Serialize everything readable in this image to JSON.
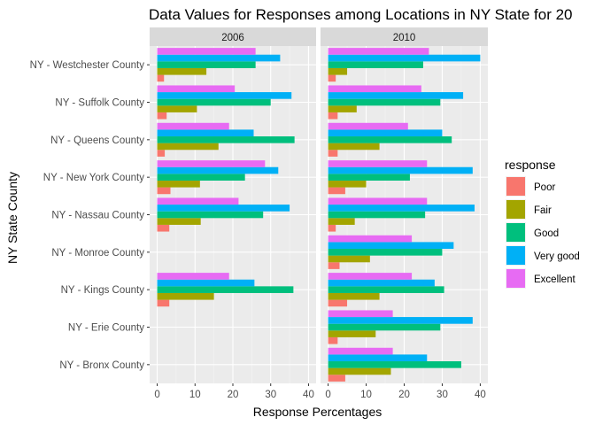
{
  "chart_data": {
    "type": "bar",
    "orientation": "horizontal",
    "title": "Data Values for Responses among Locations in NY State for 20",
    "xlabel": "Response Percentages",
    "ylabel": "NY State County",
    "xlim": [
      -2,
      42
    ],
    "x_ticks": [
      0,
      10,
      20,
      30,
      40
    ],
    "grid": true,
    "legend_position": "right",
    "legend_title": "response",
    "categories": [
      "NY - Westchester County",
      "NY - Suffolk County",
      "NY - Queens County",
      "NY - New York County",
      "NY - Nassau County",
      "NY - Monroe County",
      "NY - Kings County",
      "NY - Erie County",
      "NY - Bronx County"
    ],
    "series_meta": [
      {
        "name": "Poor",
        "color": "#F8766D"
      },
      {
        "name": "Fair",
        "color": "#A3A500"
      },
      {
        "name": "Good",
        "color": "#00BF7D"
      },
      {
        "name": "Very good",
        "color": "#00B0F6"
      },
      {
        "name": "Excellent",
        "color": "#E76BF3"
      }
    ],
    "panels": [
      {
        "label": "2006",
        "series": [
          {
            "name": "Poor",
            "values": [
              1.8,
              2.5,
              2.0,
              3.5,
              3.2,
              null,
              3.2,
              null,
              null
            ]
          },
          {
            "name": "Fair",
            "values": [
              13.0,
              10.5,
              16.2,
              11.3,
              11.5,
              null,
              15.0,
              null,
              null
            ]
          },
          {
            "name": "Good",
            "values": [
              26.0,
              30.0,
              36.3,
              23.2,
              28.0,
              null,
              36.0,
              null,
              null
            ]
          },
          {
            "name": "Very good",
            "values": [
              32.5,
              35.5,
              25.5,
              32.0,
              35.0,
              null,
              25.7,
              null,
              null
            ]
          },
          {
            "name": "Excellent",
            "values": [
              26.0,
              20.5,
              19.0,
              28.5,
              21.5,
              null,
              19.0,
              null,
              null
            ]
          }
        ]
      },
      {
        "label": "2010",
        "series": [
          {
            "name": "Poor",
            "values": [
              2.0,
              2.5,
              2.5,
              4.5,
              2.0,
              3.0,
              5.0,
              2.5,
              4.5
            ]
          },
          {
            "name": "Fair",
            "values": [
              5.0,
              7.5,
              13.5,
              10.0,
              7.0,
              11.0,
              13.5,
              12.5,
              16.5
            ]
          },
          {
            "name": "Good",
            "values": [
              25.0,
              29.5,
              32.5,
              21.5,
              25.5,
              30.0,
              30.5,
              29.5,
              35.0
            ]
          },
          {
            "name": "Very good",
            "values": [
              40.0,
              35.5,
              30.0,
              38.0,
              38.5,
              33.0,
              28.0,
              38.0,
              26.0
            ]
          },
          {
            "name": "Excellent",
            "values": [
              26.5,
              24.5,
              21.0,
              26.0,
              26.0,
              22.0,
              22.0,
              17.0,
              17.0
            ]
          }
        ]
      }
    ]
  }
}
